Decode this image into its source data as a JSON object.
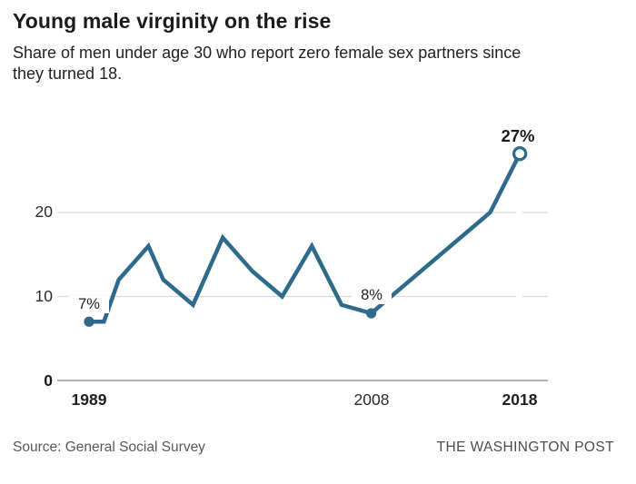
{
  "header": {
    "title": "Young male virginity on the rise",
    "subtitle": "Share of men under age 30 who report zero female sex partners since\nthey turned 18."
  },
  "chart_data": {
    "type": "line",
    "title": "Young male virginity on the rise",
    "subtitle": "Share of men under age 30 who report zero female sex partners since they turned 18.",
    "x": [
      1989,
      1990,
      1991,
      1993,
      1994,
      1996,
      1998,
      2000,
      2002,
      2004,
      2006,
      2008,
      2016,
      2018
    ],
    "values": [
      7,
      7,
      12,
      16,
      12,
      9,
      17,
      13,
      10,
      16,
      9,
      8,
      20,
      27
    ],
    "unit": "%",
    "xlabel": "",
    "ylabel": "",
    "ylim": [
      0,
      30
    ],
    "y_ticks": [
      "0",
      "10",
      "20"
    ],
    "x_ticks": [
      "1989",
      "2008",
      "2018"
    ],
    "grid": "horizontal",
    "legend": "none",
    "line_color": "#2e6a89",
    "point_labels": [
      {
        "year": 1989,
        "value": 7,
        "label": "7%",
        "marker": "filled-dot"
      },
      {
        "year": 2008,
        "value": 8,
        "label": "8%",
        "marker": "filled-dot"
      },
      {
        "year": 2018,
        "value": 27,
        "label": "27%",
        "marker": "open-circle"
      }
    ]
  },
  "theme": {
    "grid_color": "#d9d9d9",
    "axis_color": "#979797",
    "background": "#ffffff"
  },
  "footer": {
    "source": "Source: General Social Survey",
    "credit": "THE WASHINGTON POST"
  }
}
